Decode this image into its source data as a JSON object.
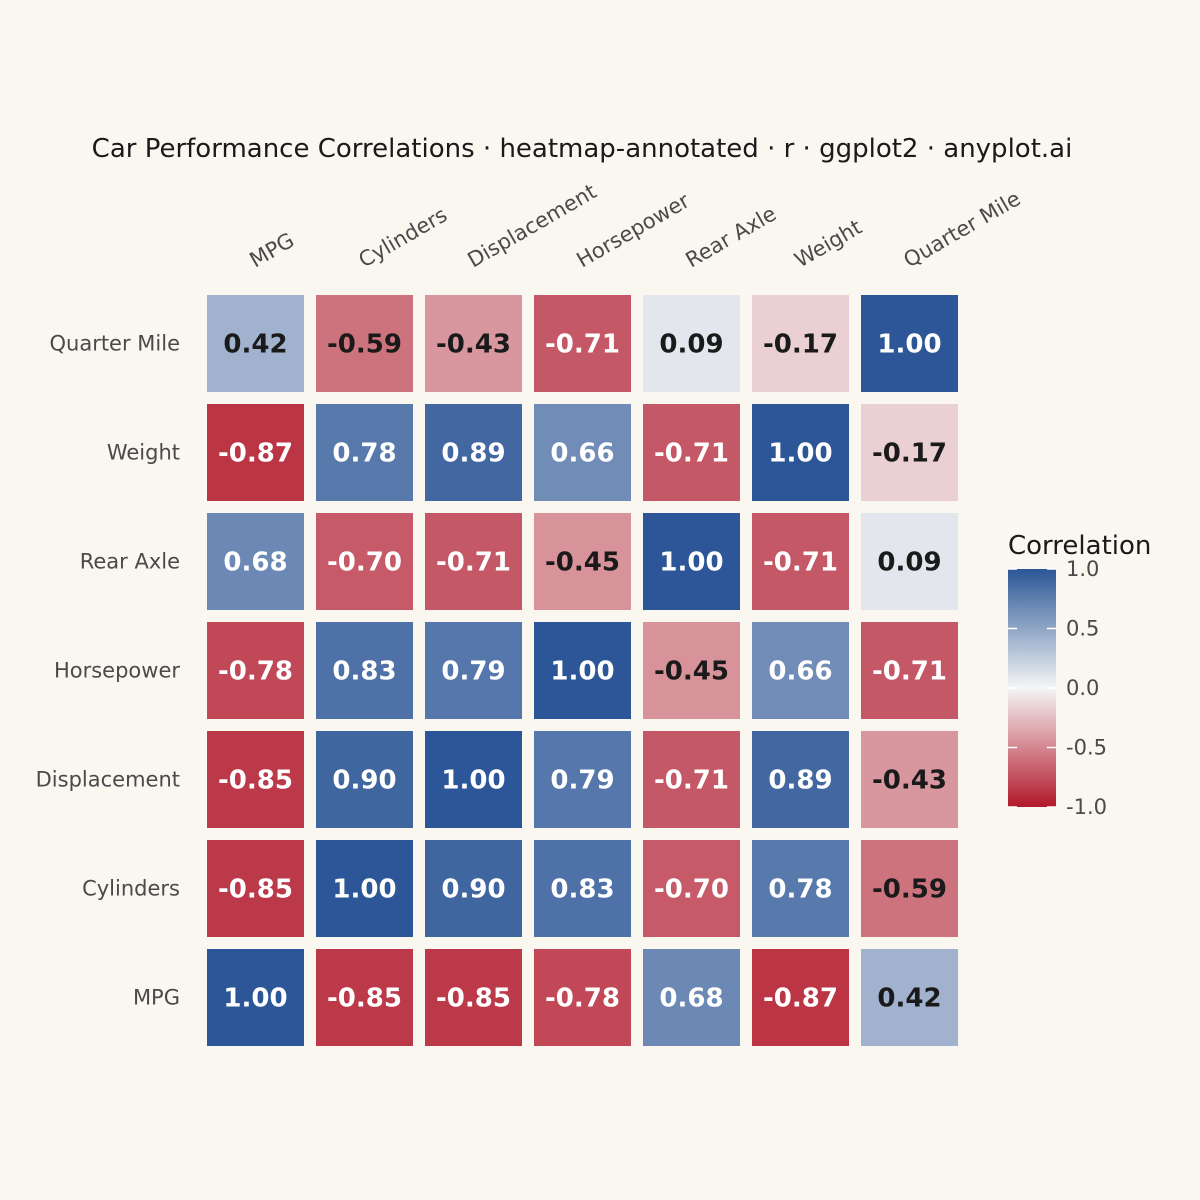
{
  "chart_data": {
    "type": "heatmap",
    "title": "Car Performance Correlations · heatmap-annotated · r · ggplot2 · anyplot.ai",
    "x_categories": [
      "MPG",
      "Cylinders",
      "Displacement",
      "Horsepower",
      "Rear Axle",
      "Weight",
      "Quarter Mile"
    ],
    "y_categories_top_to_bottom": [
      "Quarter Mile",
      "Weight",
      "Rear Axle",
      "Horsepower",
      "Displacement",
      "Cylinders",
      "MPG"
    ],
    "matrix": [
      [
        "0.42",
        "-0.59",
        "-0.43",
        "-0.71",
        "0.09",
        "-0.17",
        "1.00"
      ],
      [
        "-0.87",
        "0.78",
        "0.89",
        "0.66",
        "-0.71",
        "1.00",
        "-0.17"
      ],
      [
        "0.68",
        "-0.70",
        "-0.71",
        "-0.45",
        "1.00",
        "-0.71",
        "0.09"
      ],
      [
        "-0.78",
        "0.83",
        "0.79",
        "1.00",
        "-0.45",
        "0.66",
        "-0.71"
      ],
      [
        "-0.85",
        "0.90",
        "1.00",
        "0.79",
        "-0.71",
        "0.89",
        "-0.43"
      ],
      [
        "-0.85",
        "1.00",
        "0.90",
        "0.83",
        "-0.70",
        "0.78",
        "-0.59"
      ],
      [
        "1.00",
        "-0.85",
        "-0.85",
        "-0.78",
        "0.68",
        "-0.87",
        "0.42"
      ]
    ],
    "legend": {
      "title": "Correlation",
      "range": [
        -1,
        1
      ],
      "ticks": [
        "1.0",
        "0.5",
        "0.0",
        "-0.5",
        "-1.0"
      ],
      "position": "right"
    },
    "colors": {
      "low": "#B2182B",
      "mid": "#F5F5F5",
      "high": "#2C5697",
      "background": "#FAF7F1",
      "text_dark": "#1a1a1a",
      "text_light": "#ffffff"
    },
    "grid": false
  }
}
